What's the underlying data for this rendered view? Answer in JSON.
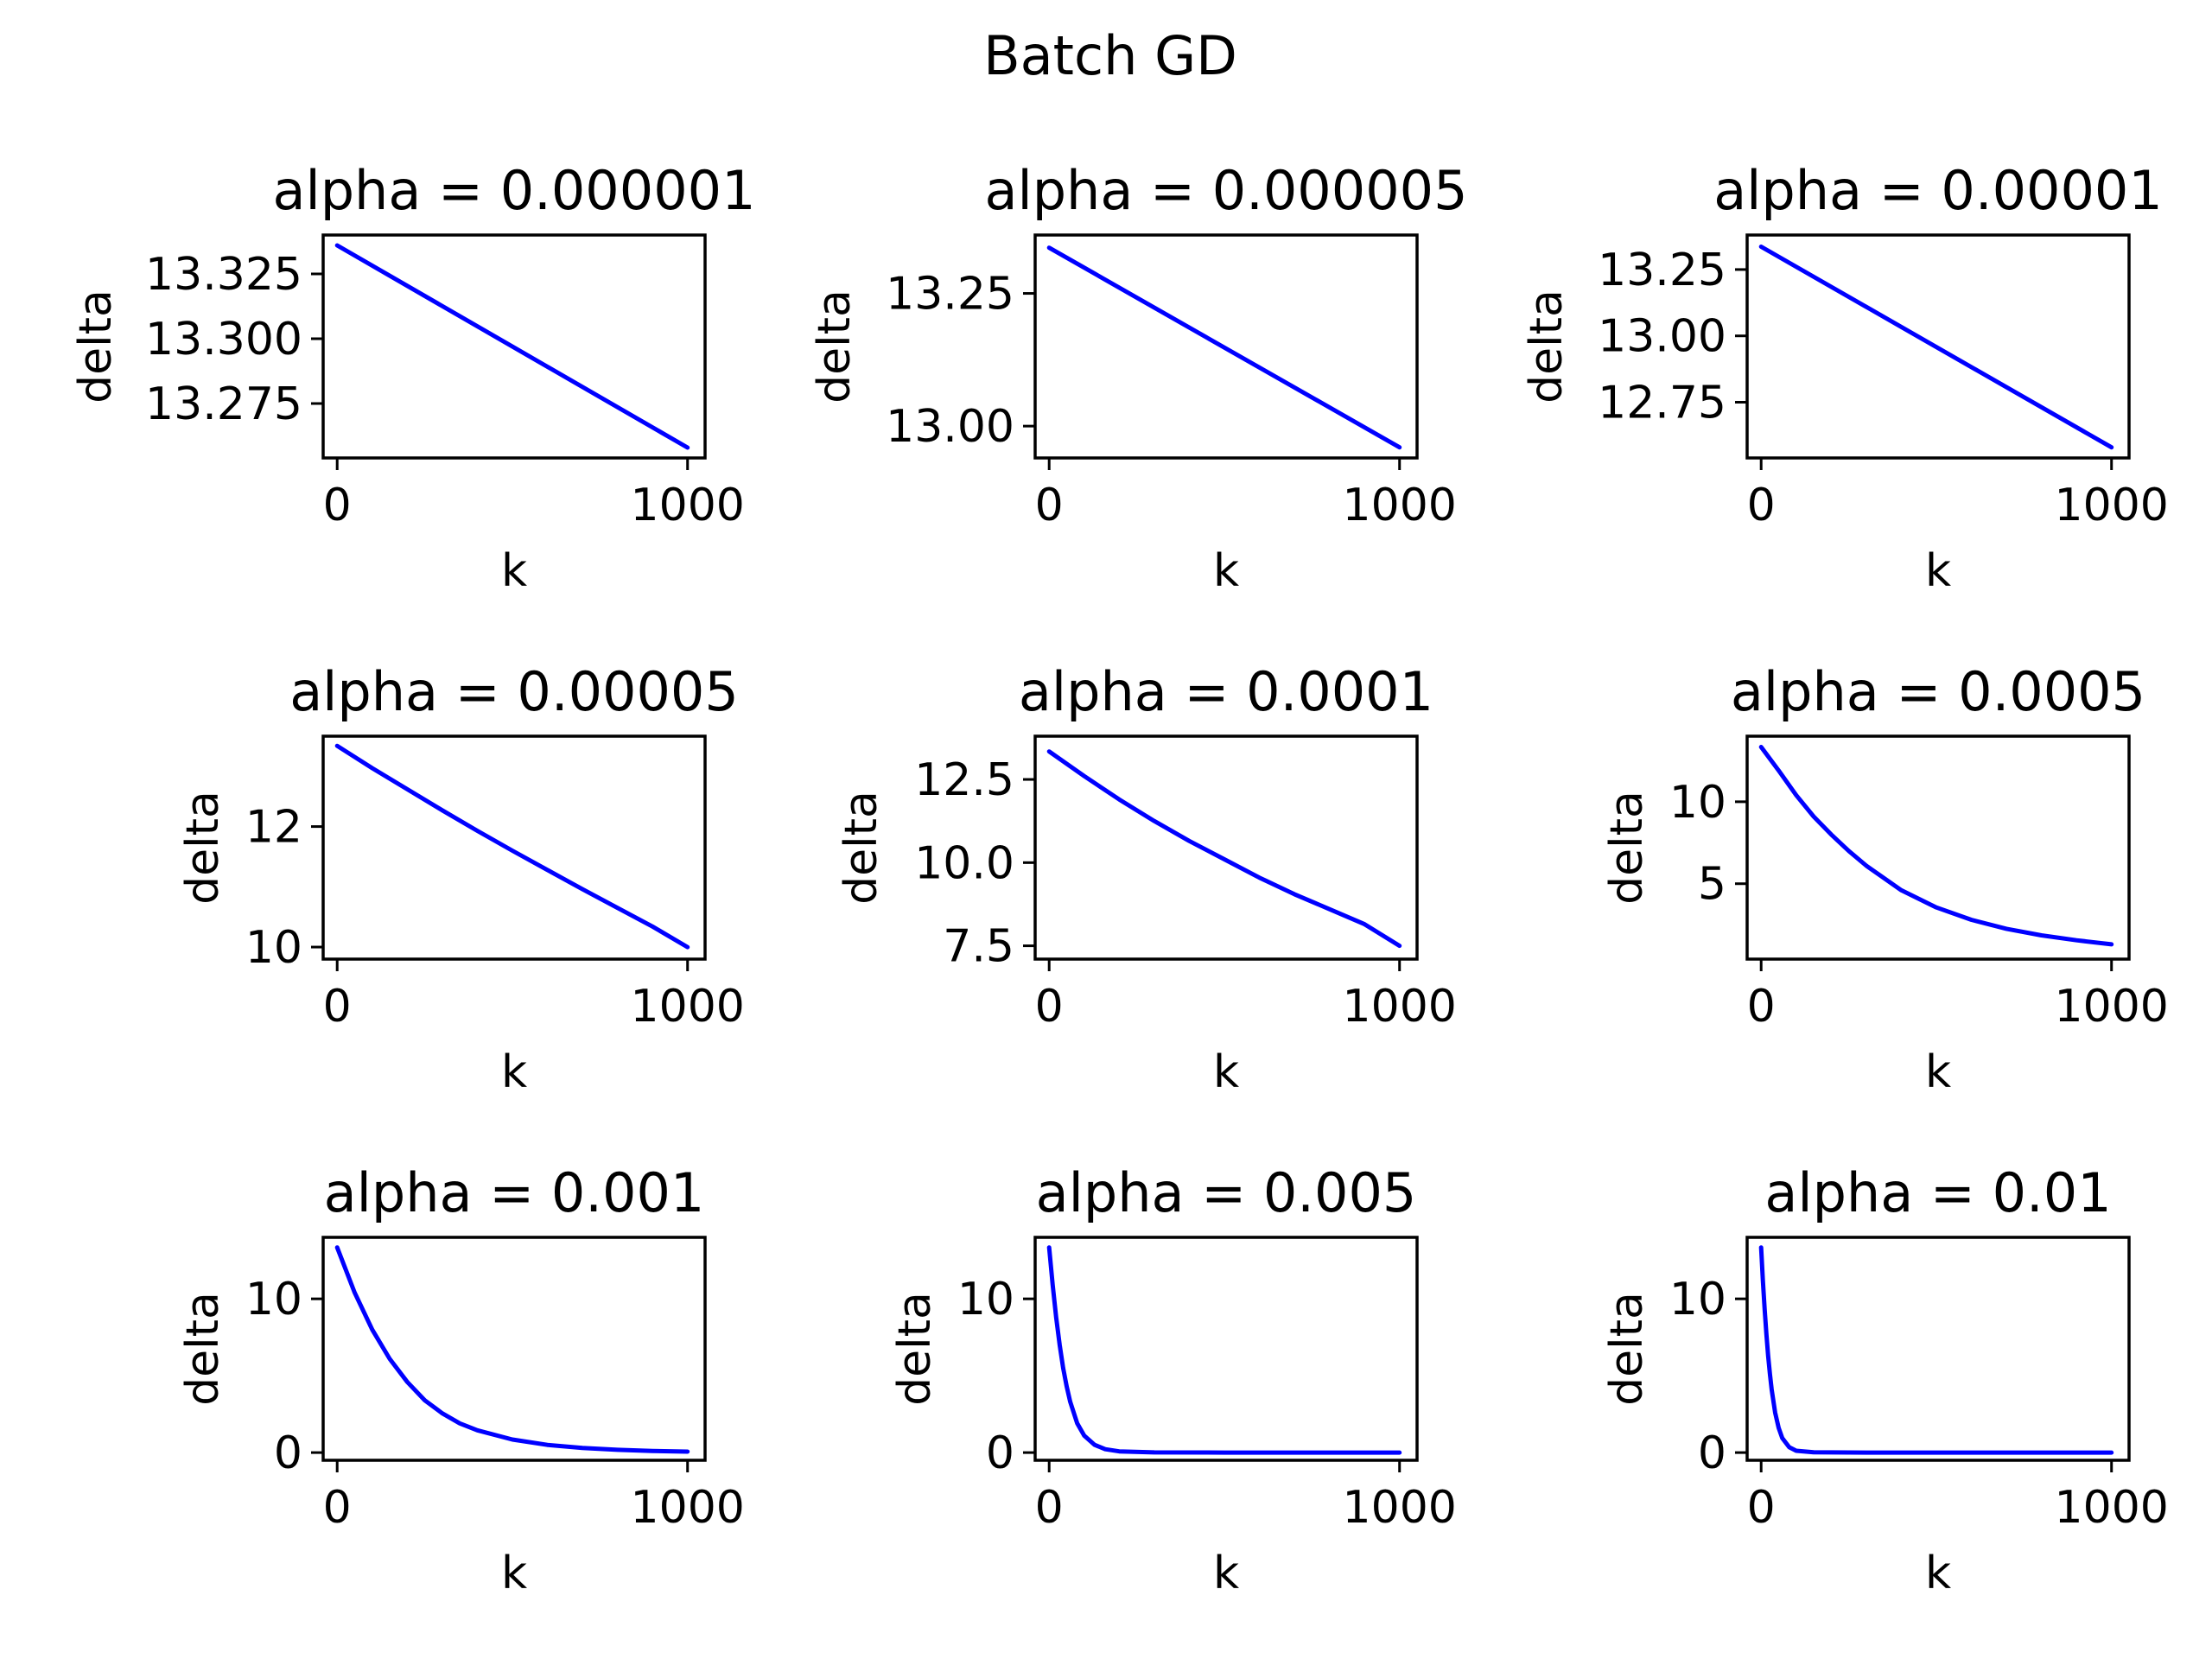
{
  "title": "Batch GD",
  "line_color": "#0000ff",
  "chart_data": [
    {
      "type": "line",
      "title": "alpha = 0.000001",
      "xlabel": "k",
      "ylabel": "delta",
      "xlim": [
        -40,
        1050
      ],
      "ylim": [
        13.254,
        13.34
      ],
      "xticks": [
        0,
        1000
      ],
      "xticklabels": [
        "0",
        "1000"
      ],
      "yticks": [
        13.275,
        13.3,
        13.325
      ],
      "yticklabels": [
        "13.275",
        "13.300",
        "13.325"
      ],
      "series": [
        {
          "x": [
            0,
            1000
          ],
          "y": [
            13.336,
            13.258
          ]
        }
      ]
    },
    {
      "type": "line",
      "title": "alpha = 0.000005",
      "xlabel": "k",
      "ylabel": "delta",
      "xlim": [
        -40,
        1050
      ],
      "ylim": [
        12.94,
        13.36
      ],
      "xticks": [
        0,
        1000
      ],
      "xticklabels": [
        "0",
        "1000"
      ],
      "yticks": [
        13.0,
        13.25
      ],
      "yticklabels": [
        "13.00",
        "13.25"
      ],
      "series": [
        {
          "x": [
            0,
            1000
          ],
          "y": [
            13.336,
            12.96
          ]
        }
      ]
    },
    {
      "type": "line",
      "title": "alpha = 0.00001",
      "xlabel": "k",
      "ylabel": "delta",
      "xlim": [
        -40,
        1050
      ],
      "ylim": [
        12.54,
        13.38
      ],
      "xticks": [
        0,
        1000
      ],
      "xticklabels": [
        "0",
        "1000"
      ],
      "yticks": [
        12.75,
        13.0,
        13.25
      ],
      "yticklabels": [
        "12.75",
        "13.00",
        "13.25"
      ],
      "series": [
        {
          "x": [
            0,
            1000
          ],
          "y": [
            13.336,
            12.58
          ]
        }
      ]
    },
    {
      "type": "line",
      "title": "alpha = 0.00005",
      "xlabel": "k",
      "ylabel": "delta",
      "xlim": [
        -40,
        1050
      ],
      "ylim": [
        9.8,
        13.5
      ],
      "xticks": [
        0,
        1000
      ],
      "xticklabels": [
        "0",
        "1000"
      ],
      "yticks": [
        10,
        12
      ],
      "yticklabels": [
        "10",
        "12"
      ],
      "series": [
        {
          "x": [
            0,
            100,
            200,
            300,
            400,
            500,
            600,
            700,
            800,
            900,
            1000
          ],
          "y": [
            13.34,
            12.97,
            12.62,
            12.27,
            11.93,
            11.6,
            11.28,
            10.96,
            10.65,
            10.34,
            10.0
          ]
        }
      ]
    },
    {
      "type": "line",
      "title": "alpha = 0.0001",
      "xlabel": "k",
      "ylabel": "delta",
      "xlim": [
        -40,
        1050
      ],
      "ylim": [
        7.1,
        13.8
      ],
      "xticks": [
        0,
        1000
      ],
      "xticklabels": [
        "0",
        "1000"
      ],
      "yticks": [
        7.5,
        10.0,
        12.5
      ],
      "yticklabels": [
        "7.5",
        "10.0",
        "12.5"
      ],
      "series": [
        {
          "x": [
            0,
            100,
            200,
            300,
            400,
            500,
            600,
            700,
            800,
            900,
            1000
          ],
          "y": [
            13.34,
            12.6,
            11.9,
            11.25,
            10.65,
            10.1,
            9.55,
            9.05,
            8.6,
            8.15,
            7.5
          ]
        }
      ]
    },
    {
      "type": "line",
      "title": "alpha = 0.0005",
      "xlabel": "k",
      "ylabel": "delta",
      "xlim": [
        -40,
        1050
      ],
      "ylim": [
        0.4,
        14.0
      ],
      "xticks": [
        0,
        1000
      ],
      "xticklabels": [
        "0",
        "1000"
      ],
      "yticks": [
        5,
        10
      ],
      "yticklabels": [
        "5",
        "10"
      ],
      "series": [
        {
          "x": [
            0,
            50,
            100,
            150,
            200,
            250,
            300,
            400,
            500,
            600,
            700,
            800,
            900,
            1000
          ],
          "y": [
            13.34,
            11.9,
            10.4,
            9.1,
            8.0,
            7.0,
            6.1,
            4.6,
            3.55,
            2.8,
            2.25,
            1.85,
            1.55,
            1.3
          ]
        }
      ]
    },
    {
      "type": "line",
      "title": "alpha = 0.001",
      "xlabel": "k",
      "ylabel": "delta",
      "xlim": [
        -40,
        1050
      ],
      "ylim": [
        -0.5,
        14.0
      ],
      "xticks": [
        0,
        1000
      ],
      "xticklabels": [
        "0",
        "1000"
      ],
      "yticks": [
        0,
        10
      ],
      "yticklabels": [
        "0",
        "10"
      ],
      "series": [
        {
          "x": [
            0,
            50,
            100,
            150,
            200,
            250,
            300,
            350,
            400,
            500,
            600,
            700,
            800,
            900,
            1000
          ],
          "y": [
            13.34,
            10.4,
            8.0,
            6.1,
            4.6,
            3.4,
            2.55,
            1.9,
            1.45,
            0.85,
            0.5,
            0.3,
            0.18,
            0.1,
            0.06
          ]
        }
      ]
    },
    {
      "type": "line",
      "title": "alpha = 0.005",
      "xlabel": "k",
      "ylabel": "delta",
      "xlim": [
        -40,
        1050
      ],
      "ylim": [
        -0.5,
        14.0
      ],
      "xticks": [
        0,
        1000
      ],
      "xticklabels": [
        "0",
        "1000"
      ],
      "yticks": [
        0,
        10
      ],
      "yticklabels": [
        "0",
        "10"
      ],
      "series": [
        {
          "x": [
            0,
            10,
            20,
            30,
            40,
            50,
            60,
            80,
            100,
            130,
            160,
            200,
            300,
            500,
            1000
          ],
          "y": [
            13.34,
            10.9,
            8.8,
            7.0,
            5.5,
            4.3,
            3.3,
            1.9,
            1.1,
            0.5,
            0.22,
            0.08,
            0.01,
            0.0,
            0.0
          ]
        }
      ]
    },
    {
      "type": "line",
      "title": "alpha = 0.01",
      "xlabel": "k",
      "ylabel": "delta",
      "xlim": [
        -40,
        1050
      ],
      "ylim": [
        -0.5,
        14.0
      ],
      "xticks": [
        0,
        1000
      ],
      "xticklabels": [
        "0",
        "1000"
      ],
      "yticks": [
        0,
        10
      ],
      "yticklabels": [
        "0",
        "10"
      ],
      "series": [
        {
          "x": [
            0,
            5,
            10,
            15,
            20,
            25,
            30,
            40,
            50,
            60,
            80,
            100,
            150,
            300,
            1000
          ],
          "y": [
            13.34,
            11.2,
            9.3,
            7.7,
            6.3,
            5.1,
            4.1,
            2.6,
            1.6,
            0.95,
            0.35,
            0.12,
            0.02,
            0.0,
            0.0
          ]
        }
      ]
    }
  ]
}
